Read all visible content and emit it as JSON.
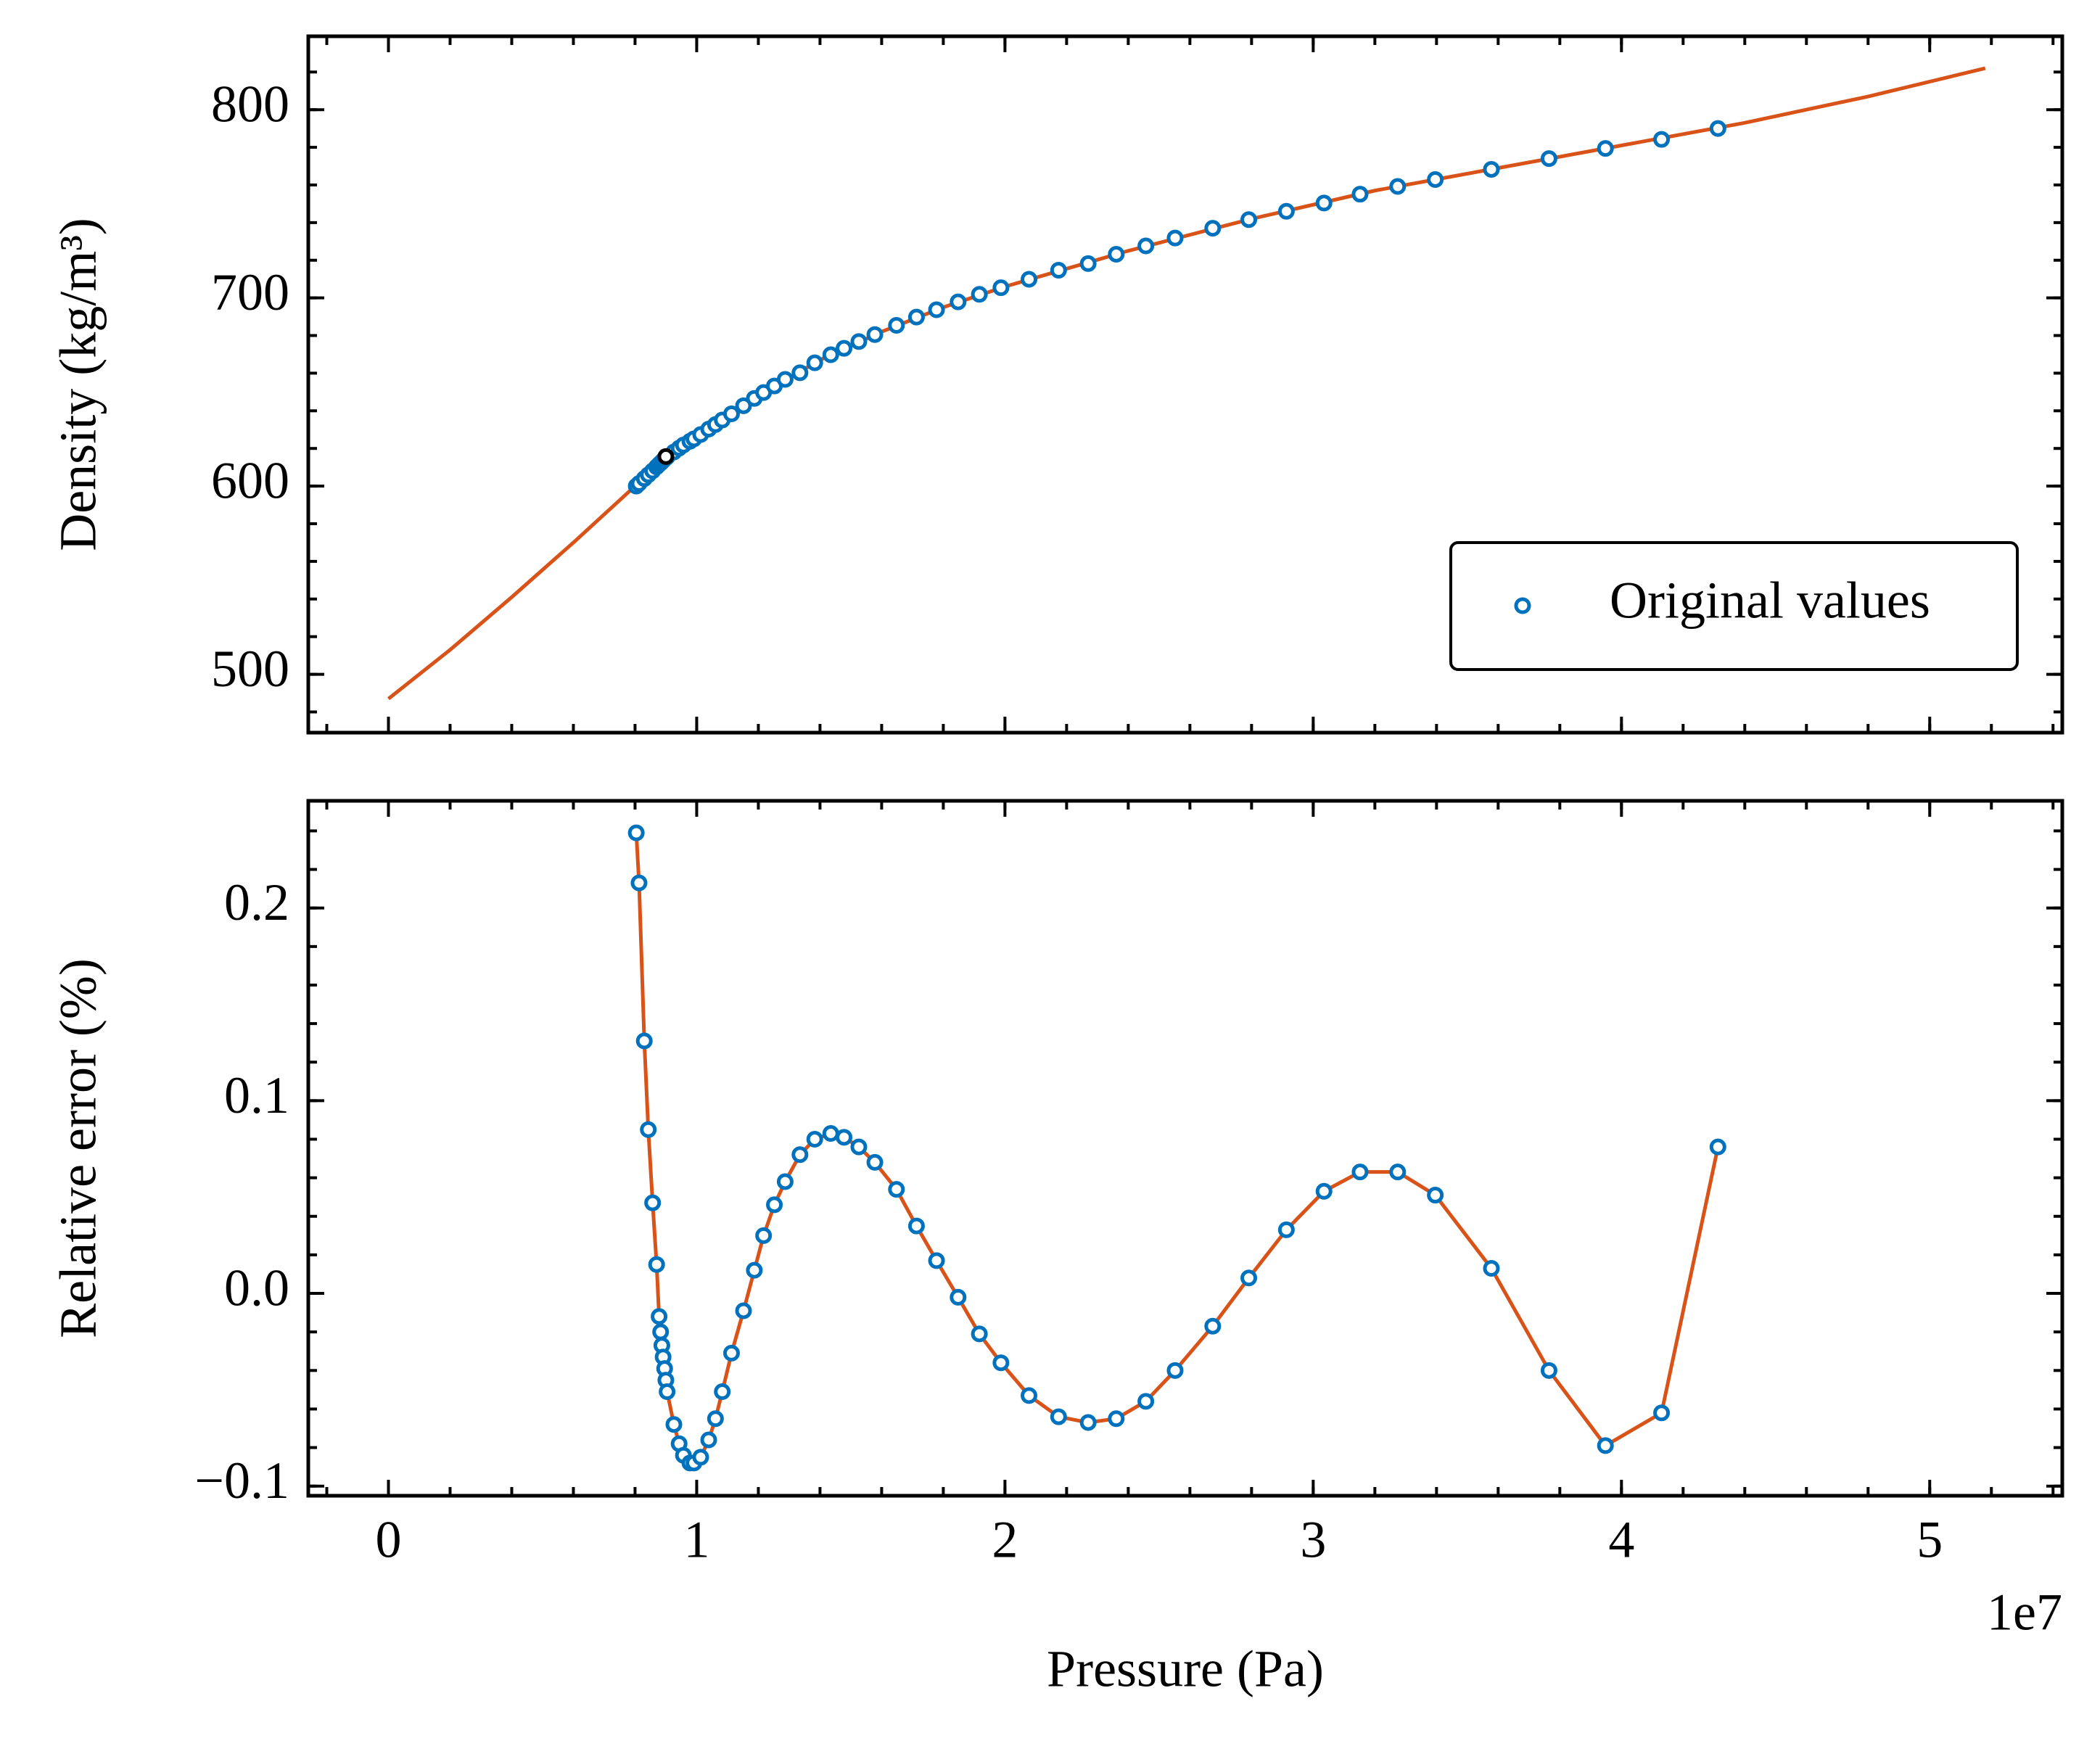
{
  "chart_data": [
    {
      "type": "scatter",
      "ylabel": "Density (kg/m³)",
      "xlim": [
        -2600000,
        54300000
      ],
      "ylim": [
        469,
        839
      ],
      "xticks": [
        0,
        10000000,
        20000000,
        30000000,
        40000000,
        50000000
      ],
      "show_xticklabels": false,
      "yticks": [
        500,
        600,
        700,
        800
      ],
      "legend": "lower right",
      "series": [
        {
          "mode": "line",
          "color": "#D95319",
          "x": [
            0,
            2000000,
            4000000,
            6000000,
            8000000,
            10000000,
            12000000,
            14000000,
            16000000,
            18000000,
            20000000,
            24000000,
            28000000,
            32000000,
            36000000,
            40000000,
            44000000,
            48000000,
            51800000
          ],
          "values": [
            487,
            513,
            541,
            570,
            600,
            626,
            648,
            667,
            682,
            695,
            706,
            725,
            742,
            757,
            769,
            781,
            793,
            807,
            822
          ]
        },
        {
          "mode": "markers",
          "name": "Original values",
          "color": "#0072BD",
          "x": [
            8040000,
            8130000,
            8300000,
            8430000,
            8570000,
            8700000,
            8780000,
            8830000,
            8870000,
            8910000,
            8960000,
            9000000,
            9040000,
            9260000,
            9430000,
            9570000,
            9780000,
            9910000,
            10130000,
            10390000,
            10610000,
            10830000,
            11130000,
            11520000,
            11870000,
            12170000,
            12520000,
            12870000,
            13350000,
            13830000,
            14350000,
            14780000,
            15260000,
            15780000,
            16480000,
            17130000,
            17780000,
            18480000,
            19170000,
            19870000,
            20780000,
            21740000,
            22700000,
            23610000,
            24570000,
            25520000,
            26740000,
            27910000,
            29130000,
            30350000,
            31520000,
            32740000,
            33960000,
            35780000,
            37650000,
            39480000,
            41300000,
            43130000
          ],
          "values": [
            600.0,
            601.4,
            604.0,
            606.0,
            608.1,
            610.2,
            611.5,
            612.3,
            612.9,
            613.6,
            614.4,
            615.0,
            615.5,
            618.1,
            620.2,
            621.8,
            623.8,
            625.1,
            627.4,
            630.3,
            632.7,
            635.1,
            638.4,
            642.7,
            646.6,
            649.7,
            653.2,
            656.7,
            660.2,
            665.5,
            669.8,
            673.2,
            676.8,
            680.5,
            685.4,
            689.8,
            693.7,
            697.9,
            701.9,
            705.4,
            709.9,
            714.7,
            718.2,
            723.2,
            727.6,
            731.8,
            737.0,
            741.6,
            746.0,
            750.4,
            755.1,
            759.2,
            762.9,
            768.3,
            774.0,
            779.4,
            784.2,
            790.0
          ]
        },
        {
          "mode": "markers",
          "color": "#000000",
          "x": [
            9000000
          ],
          "values": [
            615.7
          ]
        }
      ]
    },
    {
      "type": "line",
      "ylabel": "Relative error (%)",
      "xlabel": "Pressure (Pa)",
      "x_offset_label": "1e7",
      "xlim": [
        -2600000,
        54300000
      ],
      "ylim": [
        -0.105,
        0.2556
      ],
      "xticks": [
        0,
        {
          "value": 10000000,
          "label": "1"
        },
        {
          "value": 20000000,
          "label": "2"
        },
        {
          "value": 30000000,
          "label": "3"
        },
        {
          "value": 40000000,
          "label": "4"
        },
        {
          "value": 50000000,
          "label": "5"
        }
      ],
      "show_xticklabels": true,
      "yticks": [
        {
          "value": -0.1,
          "label": "−0.1"
        },
        {
          "value": 0,
          "label": "0.0"
        },
        0.1,
        0.2
      ],
      "series": [
        {
          "mode": "line+markers",
          "color": "#D95319",
          "marker_color": "#0072BD",
          "x": [
            8040000,
            8130000,
            8300000,
            8430000,
            8570000,
            8700000,
            8780000,
            8830000,
            8870000,
            8910000,
            8960000,
            9000000,
            9040000,
            9260000,
            9430000,
            9570000,
            9780000,
            9910000,
            10130000,
            10390000,
            10610000,
            10830000,
            11130000,
            11520000,
            11870000,
            12170000,
            12520000,
            12870000,
            13350000,
            13830000,
            14350000,
            14780000,
            15260000,
            15780000,
            16480000,
            17130000,
            17780000,
            18480000,
            19170000,
            19870000,
            20780000,
            21740000,
            22700000,
            23610000,
            24570000,
            25520000,
            26740000,
            27910000,
            29130000,
            30350000,
            31520000,
            32740000,
            33960000,
            35780000,
            37650000,
            39480000,
            41300000,
            43130000
          ],
          "values": [
            0.239,
            0.213,
            0.131,
            0.085,
            0.047,
            0.015,
            -0.012,
            -0.02,
            -0.027,
            -0.033,
            -0.039,
            -0.045,
            -0.051,
            -0.068,
            -0.078,
            -0.084,
            -0.088,
            -0.088,
            -0.085,
            -0.076,
            -0.065,
            -0.051,
            -0.031,
            -0.009,
            0.012,
            0.03,
            0.046,
            0.058,
            0.072,
            0.08,
            0.083,
            0.081,
            0.076,
            0.068,
            0.054,
            0.035,
            0.017,
            -0.002,
            -0.021,
            -0.036,
            -0.053,
            -0.064,
            -0.067,
            -0.065,
            -0.056,
            -0.04,
            -0.017,
            0.008,
            0.033,
            0.053,
            0.063,
            0.063,
            0.051,
            0.013,
            -0.04,
            -0.079,
            -0.062,
            0.076
          ]
        }
      ]
    }
  ]
}
